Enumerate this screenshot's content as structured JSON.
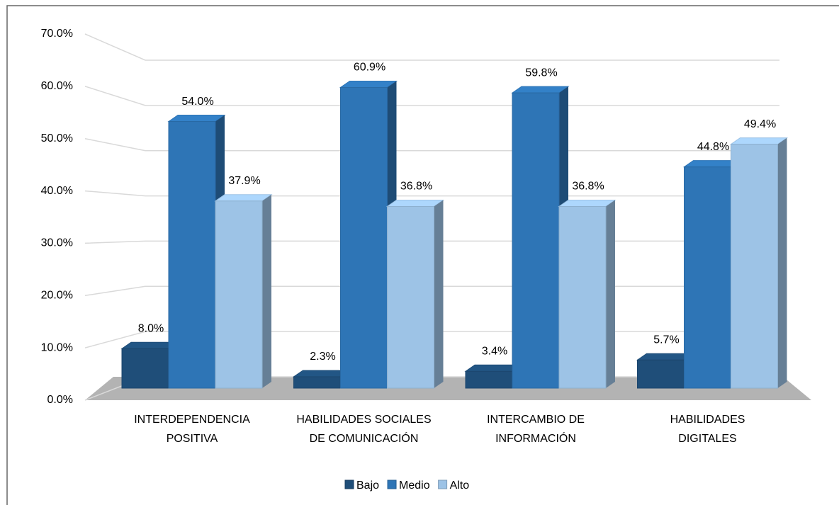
{
  "chart_data": {
    "type": "bar3d",
    "categories": [
      [
        "INTERDEPENDENCIA",
        "POSITIVA"
      ],
      [
        "HABILIDADES  SOCIALES",
        "DE COMUNICACIÓN"
      ],
      [
        "INTERCAMBIO  DE",
        "INFORMACIÓN"
      ],
      [
        "HABILIDADES",
        "DIGITALES"
      ]
    ],
    "series": [
      {
        "name": "Bajo",
        "color": "#1f4e79",
        "values": [
          8.0,
          2.3,
          3.4,
          5.7
        ],
        "value_labels": [
          "8.0%",
          "2.3%",
          "3.4%",
          "5.7%"
        ]
      },
      {
        "name": "Medio",
        "color": "#2e75b6",
        "values": [
          54.0,
          60.9,
          59.8,
          44.8
        ],
        "value_labels": [
          "54.0%",
          "60.9%",
          "59.8%",
          "44.8%"
        ]
      },
      {
        "name": "Alto",
        "color": "#9dc3e6",
        "values": [
          37.9,
          36.8,
          36.8,
          49.4
        ],
        "value_labels": [
          "37.9%",
          "36.8%",
          "36.8%",
          "49.4%"
        ]
      }
    ],
    "ylim": [
      0,
      70
    ],
    "yticks": [
      {
        "value": 0,
        "label": "0.0%"
      },
      {
        "value": 10,
        "label": "10.0%"
      },
      {
        "value": 20,
        "label": "20.0%"
      },
      {
        "value": 30,
        "label": "30.0%"
      },
      {
        "value": 40,
        "label": "40.0%"
      },
      {
        "value": 50,
        "label": "50.0%"
      },
      {
        "value": 60,
        "label": "60.0%"
      },
      {
        "value": 70,
        "label": "70.0%"
      }
    ],
    "grid": true,
    "legend": "bottom"
  }
}
